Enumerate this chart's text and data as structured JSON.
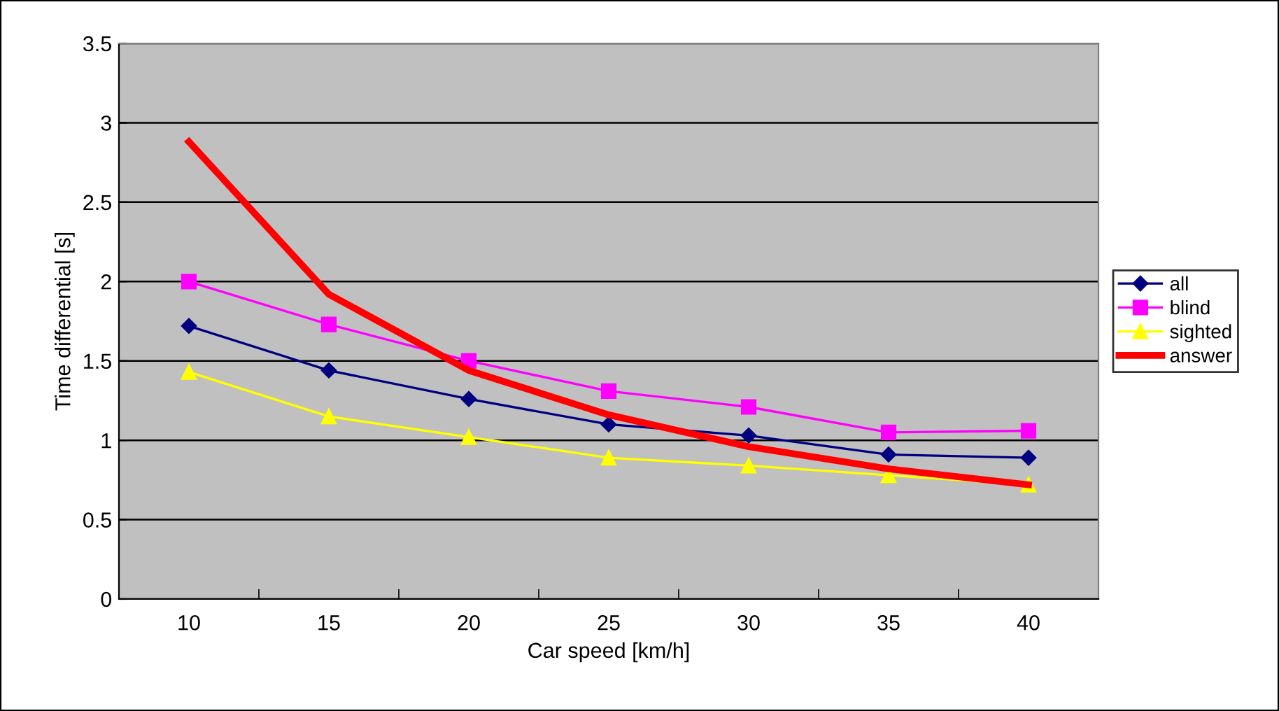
{
  "chart_data": {
    "type": "line",
    "xlabel": "Car speed [km/h]",
    "ylabel": "Time differential [s]",
    "categories": [
      "10",
      "15",
      "20",
      "25",
      "30",
      "35",
      "40"
    ],
    "series": [
      {
        "name": "all",
        "color": "#000080",
        "marker": "diamond",
        "values": [
          1.72,
          1.44,
          1.26,
          1.1,
          1.03,
          0.91,
          0.89
        ]
      },
      {
        "name": "blind",
        "color": "#ff00ff",
        "marker": "square",
        "values": [
          2.0,
          1.73,
          1.5,
          1.31,
          1.21,
          1.05,
          1.06
        ]
      },
      {
        "name": "sighted",
        "color": "#ffff00",
        "marker": "triangle",
        "values": [
          1.43,
          1.15,
          1.02,
          0.89,
          0.84,
          0.78,
          0.72
        ]
      },
      {
        "name": "answer",
        "color": "#ff0000",
        "marker": "none",
        "values": [
          2.88,
          1.92,
          1.44,
          1.16,
          0.96,
          0.82,
          0.72
        ]
      }
    ],
    "ylim": [
      0,
      3.5
    ],
    "yticks": [
      0,
      0.5,
      1,
      1.5,
      2,
      2.5,
      3,
      3.5
    ],
    "grid": "y",
    "legend": "right"
  }
}
